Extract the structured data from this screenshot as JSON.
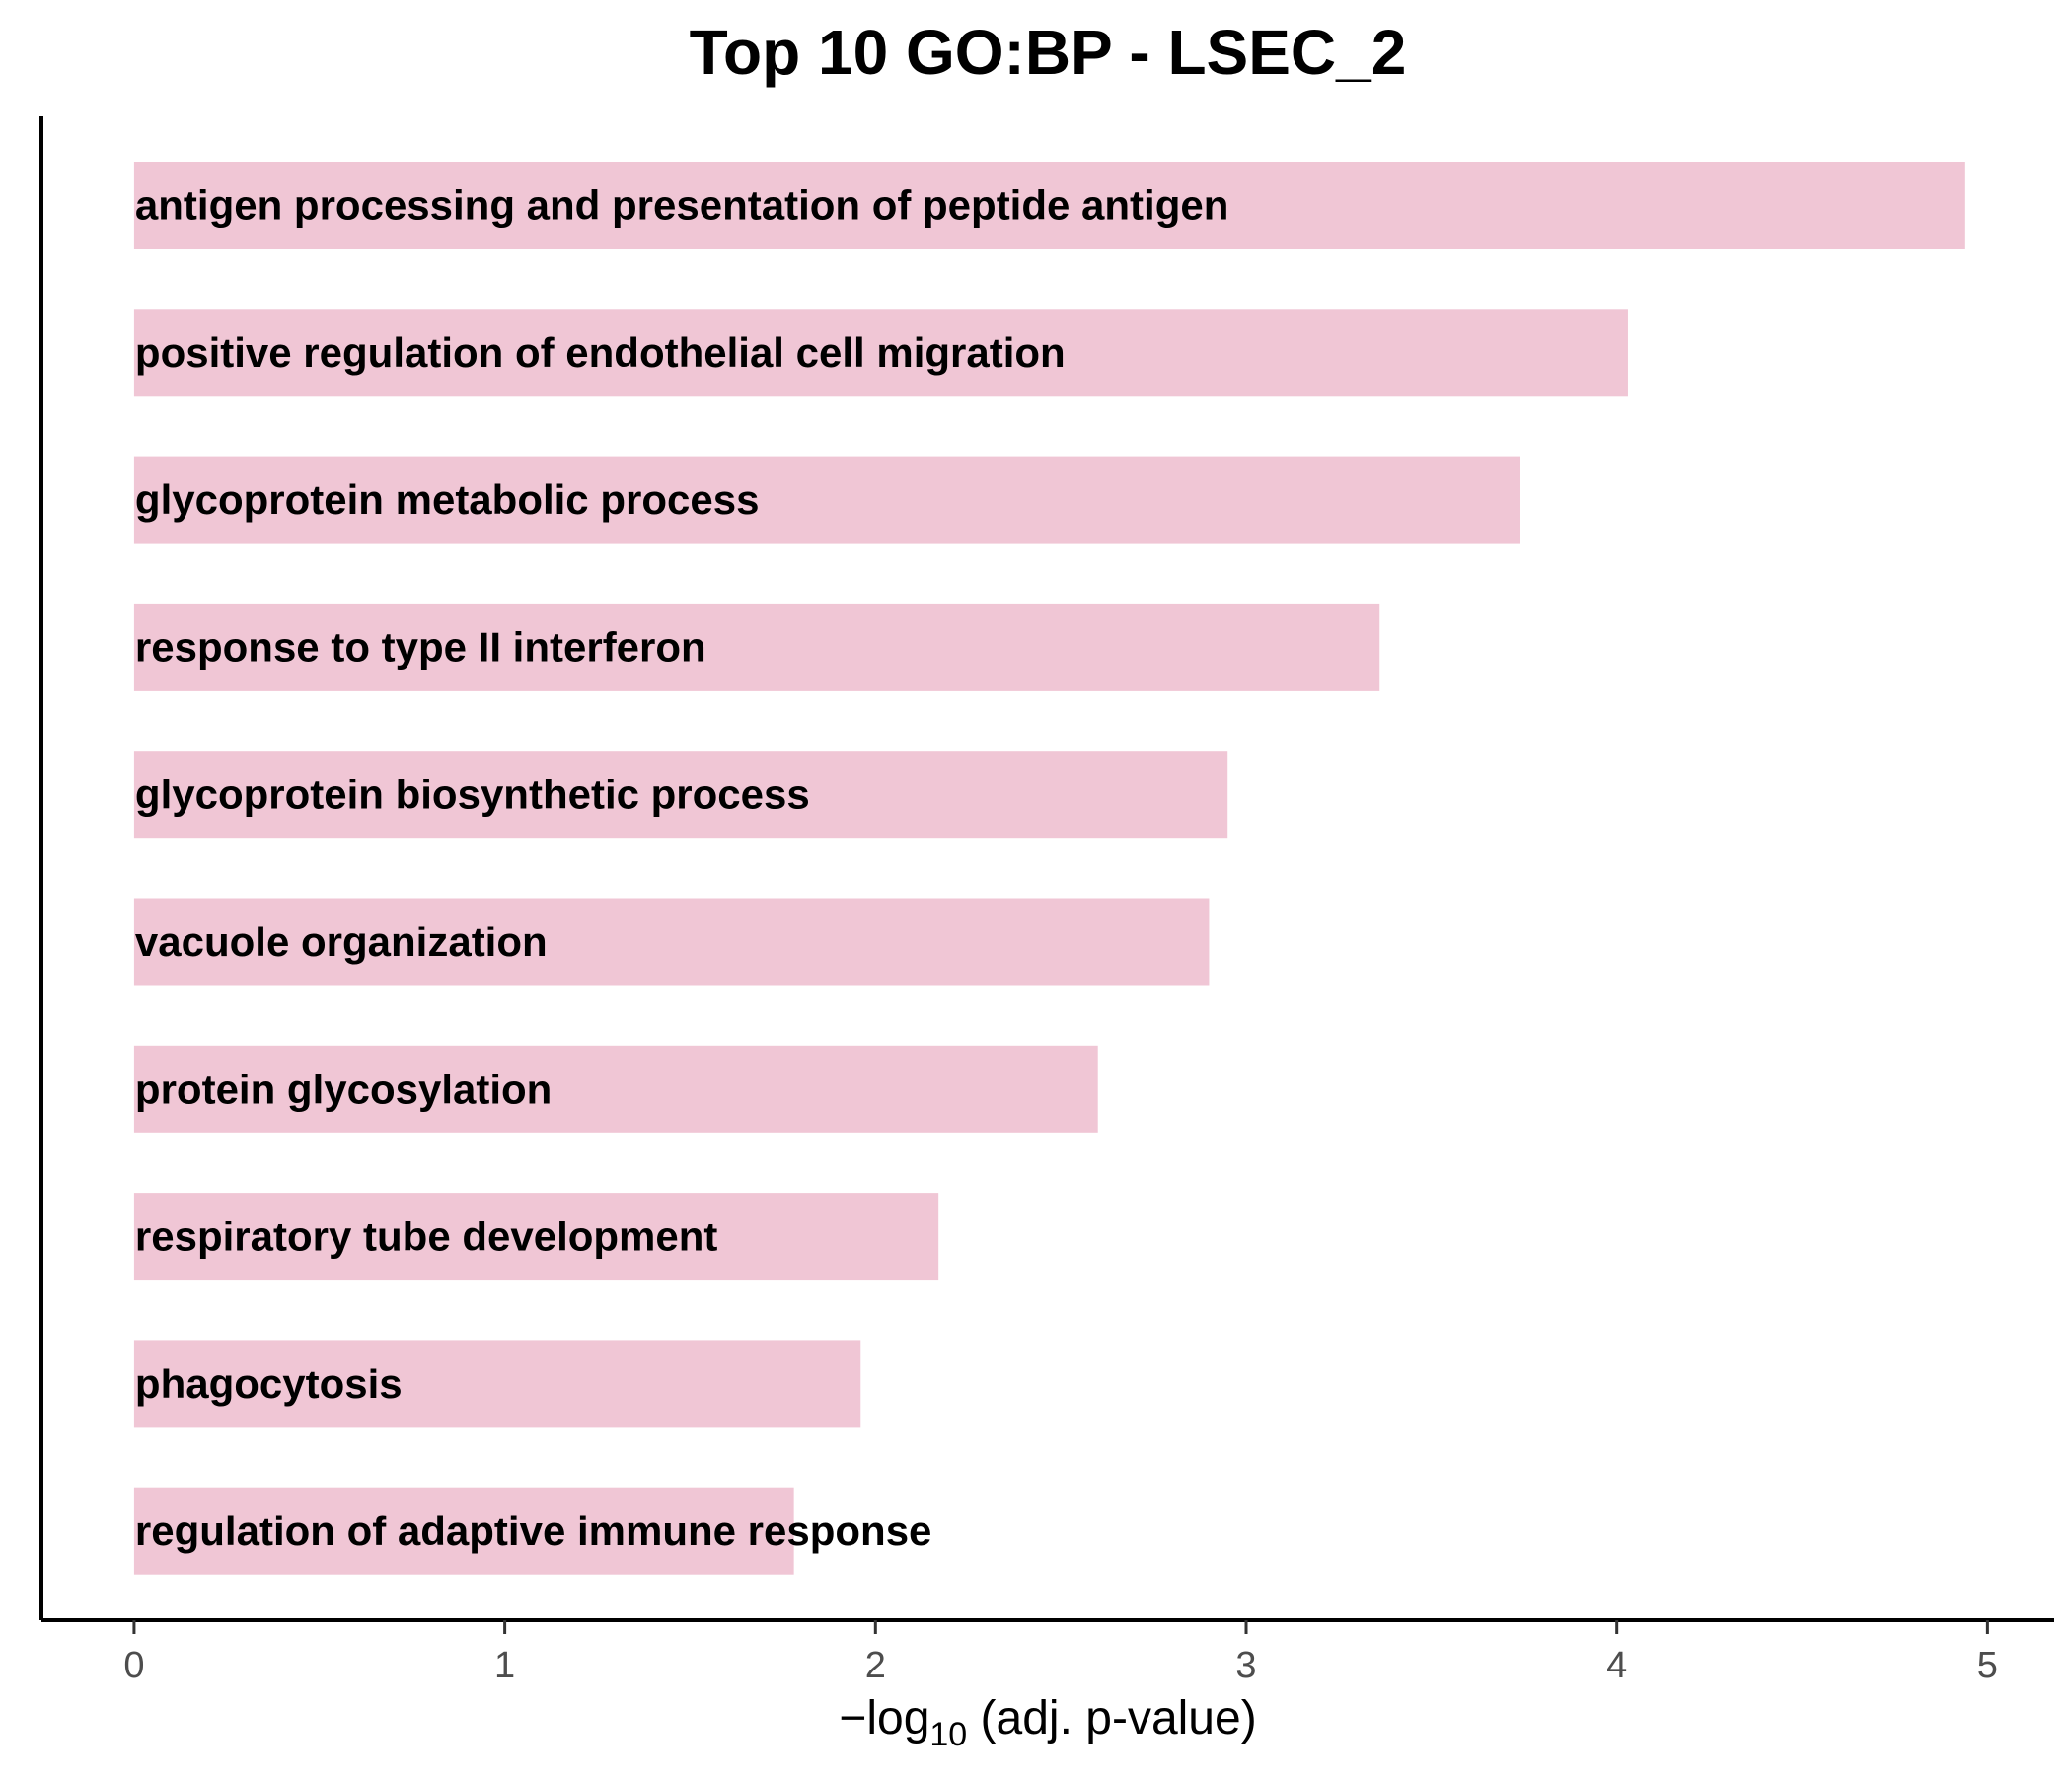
{
  "chart_data": {
    "type": "bar",
    "orientation": "horizontal",
    "title": "Top 10 GO:BP - LSEC_2",
    "xlabel": {
      "prefix": "−log",
      "subscript": "10",
      "suffix": " (adj. p-value)"
    },
    "ylabel": "",
    "categories": [
      "antigen processing and presentation of peptide antigen",
      "positive regulation of endothelial cell migration",
      "glycoprotein metabolic process",
      "response to type II interferon",
      "glycoprotein biosynthetic process",
      "vacuole organization",
      "protein glycosylation",
      "respiratory tube development",
      "phagocytosis",
      "regulation of adaptive immune response"
    ],
    "values": [
      4.94,
      4.03,
      3.74,
      3.36,
      2.95,
      2.9,
      2.6,
      2.17,
      1.96,
      1.78
    ],
    "xlim": [
      -0.25,
      5.18
    ],
    "xticks": [
      0,
      1,
      2,
      3,
      4,
      5
    ],
    "bar_color": "#f0c6d5",
    "grid": false,
    "legend": "none"
  }
}
